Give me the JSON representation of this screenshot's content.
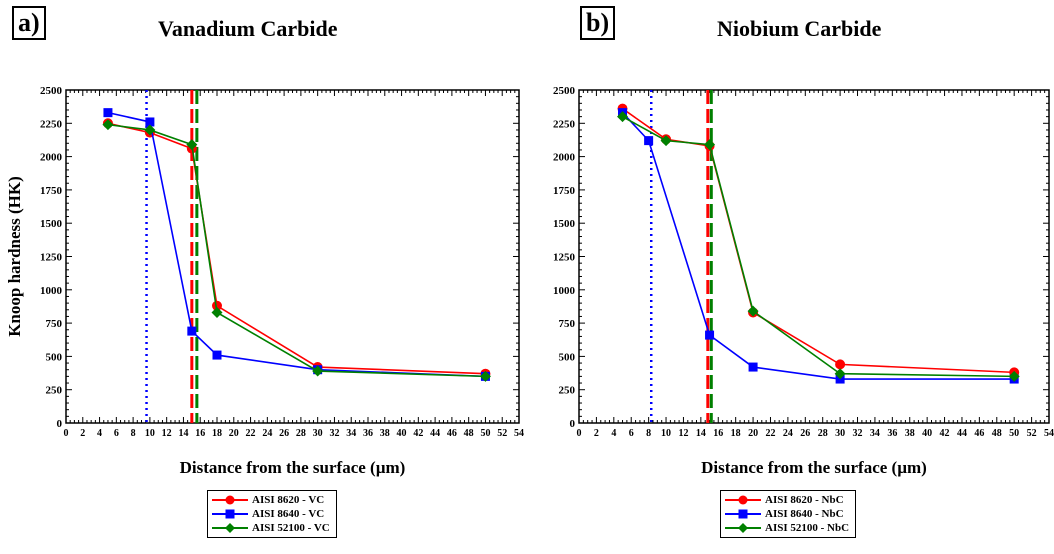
{
  "panels": [
    {
      "label": "a)",
      "title": "Vanadium Carbide",
      "legend": [
        "AISI 8620 - VC",
        "AISI 8640 - VC",
        "AISI 52100 - VC"
      ]
    },
    {
      "label": "b)",
      "title": "Niobium Carbide",
      "legend": [
        "AISI 8620 - NbC",
        "AISI 8640 - NbC",
        "AISI 52100 - NbC"
      ]
    }
  ],
  "colors": {
    "aisi_8620": "#ff0000",
    "aisi_8640": "#0000ff",
    "aisi_52100": "#008000"
  },
  "chart_data": [
    {
      "type": "line",
      "title": "Vanadium Carbide",
      "xlabel": "Distance from the surface  (µm)",
      "ylabel": "Knoop hardness (HK)",
      "xlim": [
        0,
        54
      ],
      "ylim": [
        0,
        2500
      ],
      "x_ticks": [
        0,
        2,
        4,
        6,
        8,
        10,
        12,
        14,
        16,
        18,
        20,
        22,
        24,
        26,
        28,
        30,
        32,
        34,
        36,
        38,
        40,
        42,
        44,
        46,
        48,
        50,
        52,
        54
      ],
      "y_ticks": [
        0,
        250,
        500,
        750,
        1000,
        1250,
        1500,
        1750,
        2000,
        2250,
        2500
      ],
      "grid": false,
      "legend_position": "below",
      "series": [
        {
          "name": "AISI 8620 - VC",
          "marker": "circle",
          "x": [
            5,
            10,
            15,
            18,
            30,
            50
          ],
          "y": [
            2250,
            2180,
            2060,
            880,
            420,
            370
          ]
        },
        {
          "name": "AISI 8640 - VC",
          "marker": "square",
          "x": [
            5,
            10,
            15,
            18,
            30,
            50
          ],
          "y": [
            2330,
            2260,
            690,
            510,
            400,
            350
          ]
        },
        {
          "name": "AISI 52100 - VC",
          "marker": "diamond",
          "x": [
            5,
            10,
            15,
            18,
            30,
            50
          ],
          "y": [
            2240,
            2200,
            2090,
            830,
            390,
            350
          ]
        }
      ],
      "vlines": [
        {
          "x": 9.6,
          "series": 1,
          "style": "dotted"
        },
        {
          "x": 15.0,
          "series": 0,
          "style": "dashed"
        },
        {
          "x": 15.6,
          "series": 2,
          "style": "dashed"
        }
      ]
    },
    {
      "type": "line",
      "title": "Niobium Carbide",
      "xlabel": "Distance from the surface  (µm)",
      "ylabel": "",
      "xlim": [
        0,
        54
      ],
      "ylim": [
        0,
        2500
      ],
      "x_ticks": [
        0,
        2,
        4,
        6,
        8,
        10,
        12,
        14,
        16,
        18,
        20,
        22,
        24,
        26,
        28,
        30,
        32,
        34,
        36,
        38,
        40,
        42,
        44,
        46,
        48,
        50,
        52,
        54
      ],
      "y_ticks": [
        0,
        250,
        500,
        750,
        1000,
        1250,
        1500,
        1750,
        2000,
        2250,
        2500
      ],
      "grid": false,
      "legend_position": "below",
      "series": [
        {
          "name": "AISI 8620 - NbC",
          "marker": "circle",
          "x": [
            5,
            10,
            15,
            20,
            30,
            50
          ],
          "y": [
            2360,
            2130,
            2080,
            830,
            440,
            380
          ]
        },
        {
          "name": "AISI 8640 - NbC",
          "marker": "square",
          "x": [
            5,
            8,
            15,
            20,
            30,
            50
          ],
          "y": [
            2330,
            2120,
            660,
            420,
            330,
            330
          ]
        },
        {
          "name": "AISI 52100 - NbC",
          "marker": "diamond",
          "x": [
            5,
            10,
            15,
            20,
            30,
            50
          ],
          "y": [
            2300,
            2120,
            2090,
            840,
            370,
            350
          ]
        }
      ],
      "vlines": [
        {
          "x": 8.3,
          "series": 1,
          "style": "dotted"
        },
        {
          "x": 14.8,
          "series": 0,
          "style": "dashed"
        },
        {
          "x": 15.2,
          "series": 2,
          "style": "dashed"
        }
      ]
    }
  ]
}
